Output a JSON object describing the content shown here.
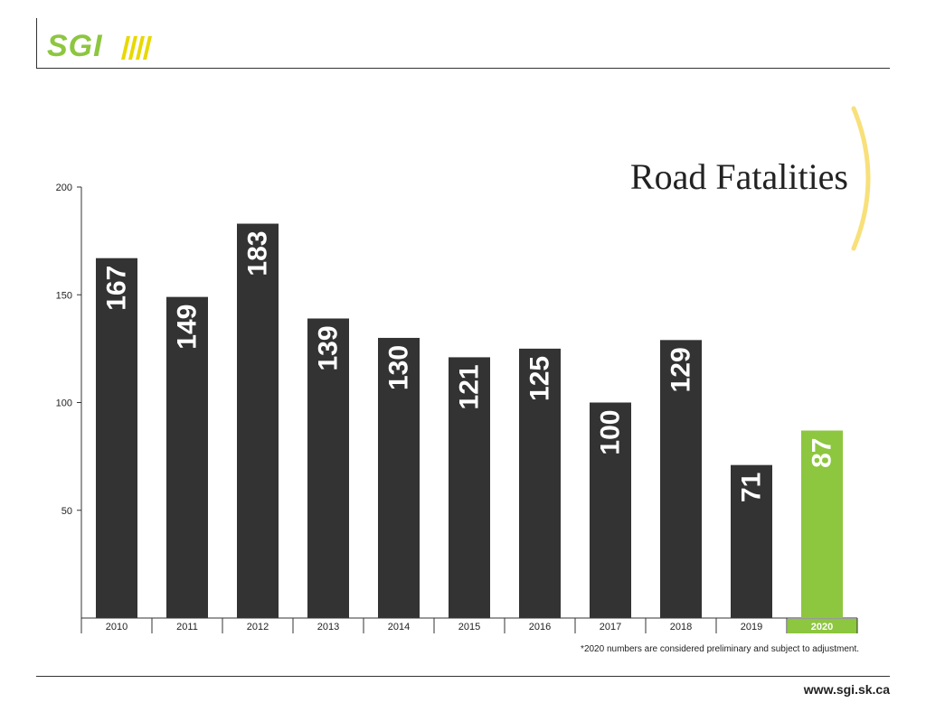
{
  "logo": {
    "text": "SGI"
  },
  "chart_data": {
    "type": "bar",
    "title": "Road Fatalities",
    "categories": [
      "2010",
      "2011",
      "2012",
      "2013",
      "2014",
      "2015",
      "2016",
      "2017",
      "2018",
      "2019",
      "2020"
    ],
    "values": [
      167,
      149,
      183,
      139,
      130,
      121,
      125,
      100,
      129,
      71,
      87
    ],
    "highlight_category": "2020",
    "ylim": [
      0,
      200
    ],
    "yticks": [
      50,
      100,
      150,
      200
    ],
    "colors": {
      "bar": "#333333",
      "highlight": "#8dc63f",
      "label": "#ffffff"
    },
    "grid": false,
    "legend": "none"
  },
  "footnote": "*2020 numbers are considered preliminary and subject to adjustment.",
  "footer": {
    "url": "www.sgi.sk.ca"
  }
}
